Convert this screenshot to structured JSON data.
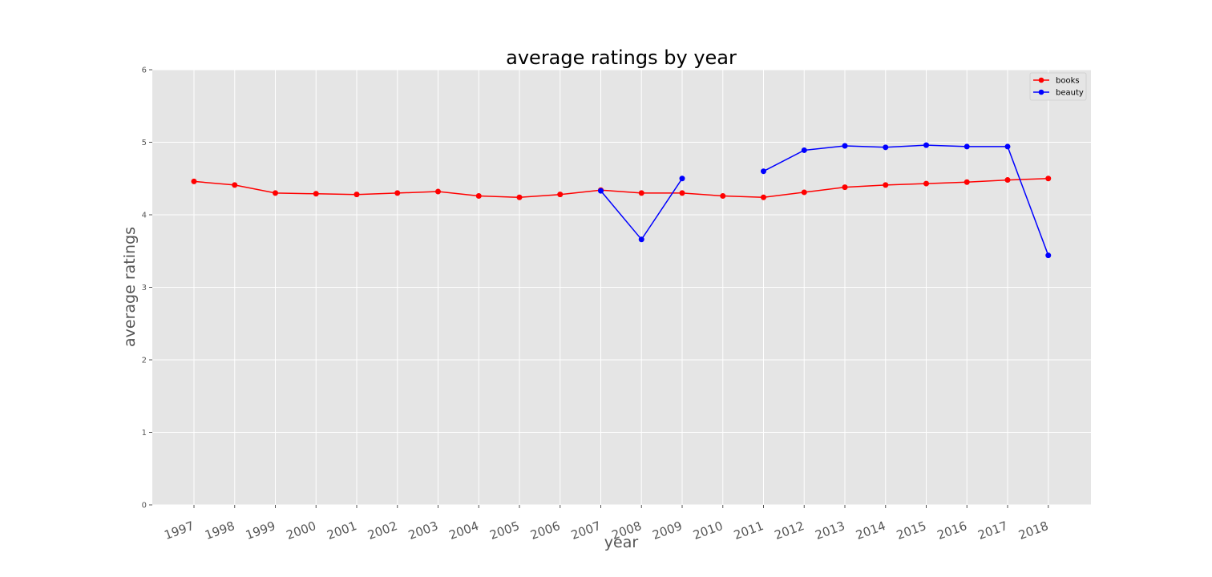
{
  "chart_data": {
    "type": "line",
    "title": "average ratings by year",
    "xlabel": "year",
    "ylabel": "average ratings",
    "ylim": [
      0,
      6
    ],
    "yticks": [
      "0",
      "1",
      "2",
      "3",
      "4",
      "5",
      "6"
    ],
    "categories": [
      "1997",
      "1998",
      "1999",
      "2000",
      "2001",
      "2002",
      "2003",
      "2004",
      "2005",
      "2006",
      "2007",
      "2008",
      "2009",
      "2010",
      "2011",
      "2012",
      "2013",
      "2014",
      "2015",
      "2016",
      "2017",
      "2018"
    ],
    "grid": true,
    "legend_position": "top-right",
    "background": "#e5e5e5",
    "series": [
      {
        "name": "books",
        "color": "#ff0000",
        "values": [
          4.46,
          4.41,
          4.3,
          4.29,
          4.28,
          4.3,
          4.32,
          4.26,
          4.24,
          4.28,
          4.34,
          4.3,
          4.3,
          4.26,
          4.24,
          4.31,
          4.38,
          4.41,
          4.43,
          4.45,
          4.48,
          4.5
        ]
      },
      {
        "name": "beauty",
        "color": "#0000ff",
        "values": [
          null,
          null,
          null,
          null,
          null,
          null,
          null,
          null,
          null,
          null,
          4.33,
          3.66,
          4.5,
          null,
          4.6,
          4.89,
          4.95,
          4.93,
          4.96,
          4.94,
          4.94,
          3.44
        ]
      }
    ]
  }
}
